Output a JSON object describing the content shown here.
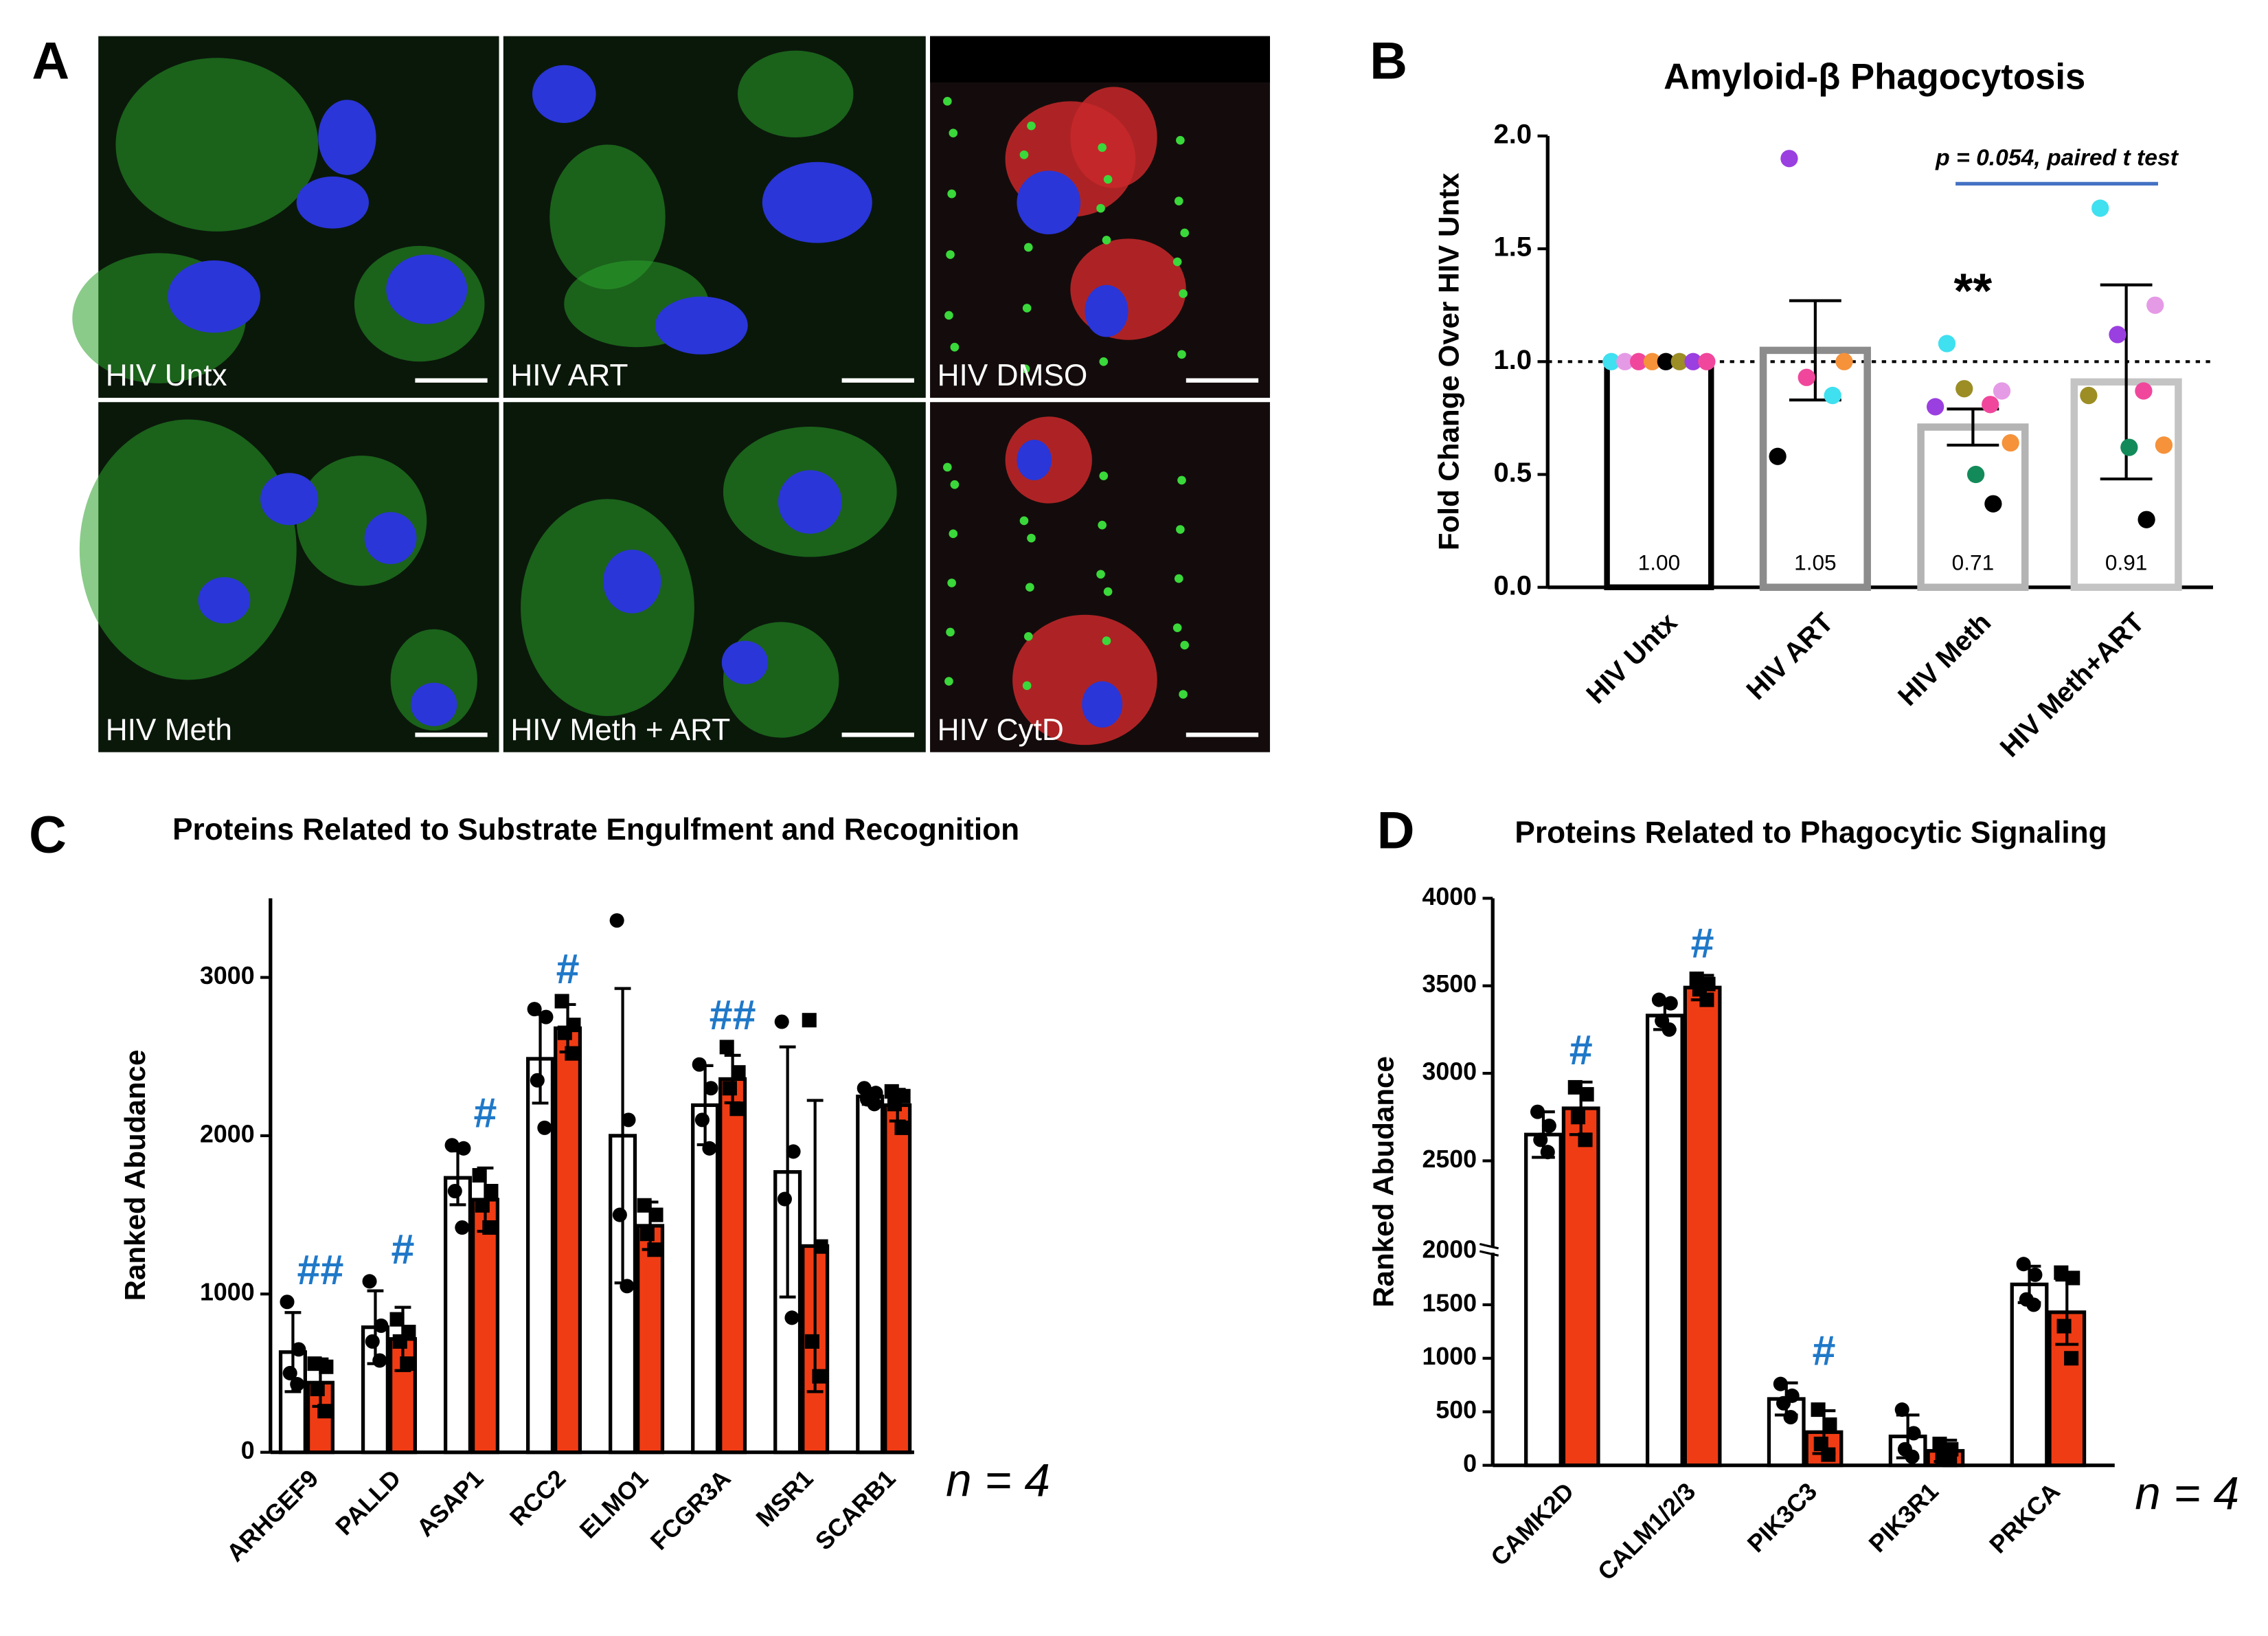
{
  "panel_labels": [
    "A",
    "B",
    "C",
    "D"
  ],
  "micrographs": [
    "HIV Untx",
    "HIV ART",
    "HIV DMSO",
    "HIV Meth",
    "HIV Meth + ART",
    "HIV CytD"
  ],
  "chart_data": [
    {
      "type": "bar",
      "title": "Amyloid-β Phagocytosis",
      "y_label": "Fold Change Over HIV Untx",
      "categories": [
        "HIV Untx",
        "HIV ART",
        "HIV Meth",
        "HIV Meth+ART"
      ],
      "values": [
        1.0,
        1.05,
        0.71,
        0.91
      ],
      "value_labels": [
        "1.00",
        "1.05",
        "0.71",
        "0.91"
      ],
      "errors": [
        null,
        0.22,
        0.08,
        0.43
      ],
      "colors": [
        "#000000",
        "#8c8c8c",
        "#b4b4b4",
        "#c4c4c4"
      ],
      "points": [
        [
          {
            "y": 1,
            "color": "#3fe0ef"
          },
          {
            "y": 1,
            "color": "#e59ae6"
          },
          {
            "y": 1,
            "color": "#f0479c"
          },
          {
            "y": 1,
            "color": "#f5923a"
          },
          {
            "y": 1,
            "color": "#000000"
          },
          {
            "y": 1,
            "color": "#9c8d25"
          },
          {
            "y": 1,
            "color": "#9a3fe0"
          },
          {
            "y": 1,
            "color": "#f0479c"
          }
        ],
        [
          {
            "y": 1.9,
            "color": "#9a3fe0"
          },
          {
            "y": 1.0,
            "color": "#f5923a"
          },
          {
            "y": 0.93,
            "color": "#f0479c"
          },
          {
            "y": 0.85,
            "color": "#3fe0ef"
          },
          {
            "y": 0.58,
            "color": "#000000"
          }
        ],
        [
          {
            "y": 1.08,
            "color": "#3fe0ef"
          },
          {
            "y": 0.87,
            "color": "#e59ae6"
          },
          {
            "y": 0.88,
            "color": "#9c8d25"
          },
          {
            "y": 0.81,
            "color": "#f0479c"
          },
          {
            "y": 0.8,
            "color": "#9a3fe0"
          },
          {
            "y": 0.64,
            "color": "#f5923a"
          },
          {
            "y": 0.5,
            "color": "#138a5a"
          },
          {
            "y": 0.37,
            "color": "#000000"
          }
        ],
        [
          {
            "y": 1.68,
            "color": "#3fe0ef"
          },
          {
            "y": 1.25,
            "color": "#e59ae6"
          },
          {
            "y": 1.12,
            "color": "#9a3fe0"
          },
          {
            "y": 0.87,
            "color": "#f0479c"
          },
          {
            "y": 0.85,
            "color": "#9c8d25"
          },
          {
            "y": 0.63,
            "color": "#f5923a"
          },
          {
            "y": 0.62,
            "color": "#138a5a"
          },
          {
            "y": 0.3,
            "color": "#000000"
          }
        ]
      ],
      "reference_line": 1,
      "significance": [
        null,
        null,
        "**",
        null
      ],
      "comparison": {
        "text": "p = 0.054, paired t test",
        "from": "HIV Meth",
        "to": "HIV Meth+ART",
        "color": "#4472c4"
      },
      "ylim": [
        0,
        2
      ],
      "yticks": [
        {
          "value": 0,
          "label": "0.0"
        },
        0.5,
        {
          "value": 1,
          "label": "1.0"
        },
        1.5,
        {
          "value": 2,
          "label": "2.0"
        }
      ]
    },
    {
      "type": "bar",
      "title": "Proteins Related to Substrate Engulfment and Recognition",
      "y_label": "Ranked Abudance",
      "categories": [
        "ARHGEF9",
        "PALLD",
        "ASAP1",
        "RCC2",
        "ELMO1",
        "FCGR3A",
        "MSR1",
        "SCARB1"
      ],
      "series": [
        {
          "color": "#ffffff",
          "marker": "circle",
          "values": [
            633,
            790,
            1734,
            2486,
            2000,
            2193,
            1771,
            2248
          ],
          "errors": [
            250,
            230,
            170,
            280,
            930,
            250,
            790,
            50
          ],
          "points": [
            [
              950,
              650,
              500,
              430
            ],
            [
              1080,
              800,
              700,
              580
            ],
            [
              1940,
              1920,
              1650,
              1420
            ],
            [
              2800,
              2750,
              2350,
              2050
            ],
            [
              3360,
              2100,
              1500,
              1050
            ],
            [
              2450,
              2300,
              2100,
              1920
            ],
            [
              2720,
              1900,
              1600,
              850
            ],
            [
              2300,
              2270,
              2230,
              2200
            ]
          ]
        },
        {
          "color": "#f03c14",
          "marker": "square",
          "values": [
            440,
            716,
            1596,
            2679,
            1431,
            2358,
            1303,
            2193
          ],
          "errors": [
            150,
            200,
            200,
            150,
            150,
            150,
            920,
            100
          ],
          "points": [
            [
              560,
              540,
              400,
              260
            ],
            [
              840,
              760,
              700,
              560
            ],
            [
              1750,
              1650,
              1560,
              1420
            ],
            [
              2850,
              2700,
              2650,
              2520
            ],
            [
              1560,
              1500,
              1380,
              1280
            ],
            [
              2560,
              2400,
              2300,
              2170
            ],
            [
              2730,
              1300,
              700,
              480
            ],
            [
              2280,
              2250,
              2200,
              2050
            ]
          ]
        }
      ],
      "significance": [
        "##",
        "#",
        "#",
        "#",
        null,
        "##",
        null,
        null
      ],
      "significance_color": "#1f78c8",
      "note": "n = 4",
      "ylim": [
        0,
        3500
      ],
      "yticks": [
        0,
        1000,
        2000,
        3000
      ]
    },
    {
      "type": "bar",
      "title": "Proteins Related to Phagocytic Signaling",
      "y_label": "Ranked Abudance",
      "categories": [
        "CAMK2D",
        "CALM1/2/3",
        "PIK3C3",
        "PIK3R1",
        "PRKCA"
      ],
      "series": [
        {
          "color": "#ffffff",
          "marker": "circle",
          "values": [
            2650,
            3330,
            620,
            270,
            1690
          ],
          "errors": [
            130,
            80,
            150,
            200,
            170
          ],
          "points": [
            [
              2780,
              2700,
              2620,
              2550
            ],
            [
              3420,
              3400,
              3300,
              3250
            ],
            [
              760,
              650,
              580,
              450
            ],
            [
              520,
              300,
              150,
              80
            ],
            [
              1880,
              1780,
              1550,
              1500
            ]
          ]
        },
        {
          "color": "#f03c14",
          "marker": "square",
          "values": [
            2800,
            3490,
            310,
            135,
            1430
          ],
          "errors": [
            150,
            70,
            200,
            100,
            300
          ],
          "points": [
            [
              2920,
              2880,
              2750,
              2620
            ],
            [
              3540,
              3510,
              3480,
              3420
            ],
            [
              520,
              380,
              200,
              100
            ],
            [
              200,
              150,
              80,
              50
            ],
            [
              1800,
              1750,
              1300,
              1000
            ]
          ]
        }
      ],
      "significance": [
        "#",
        "#",
        "#",
        null,
        null
      ],
      "significance_color": "#1f78c8",
      "note": "n = 4",
      "ylim": [
        0,
        4000
      ],
      "ybreak": 2000,
      "yticks": [
        0,
        500,
        1000,
        1500,
        2000,
        2500,
        3000,
        3500,
        4000
      ]
    }
  ]
}
